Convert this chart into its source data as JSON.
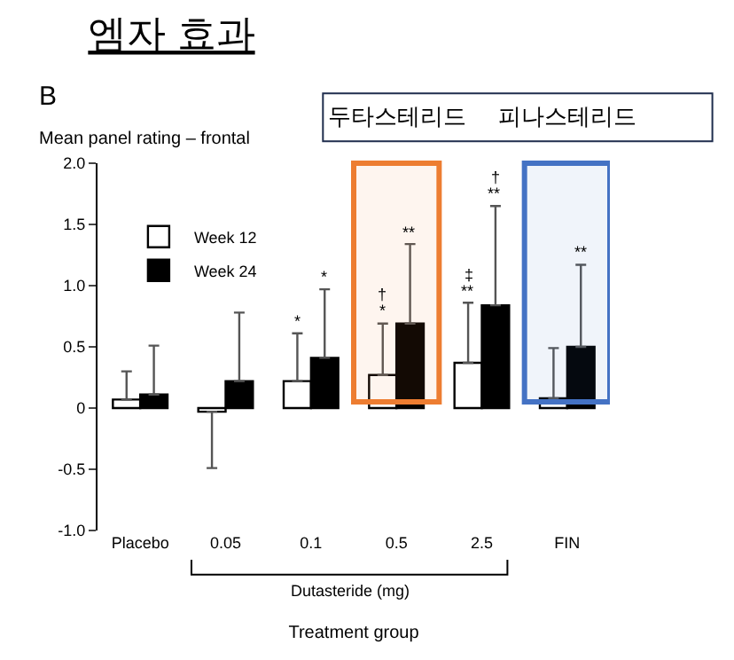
{
  "chart_data": {
    "type": "bar",
    "title": "엠자 효과",
    "ylabel": "Mean panel rating – frontal",
    "xlabel": "Treatment group",
    "categories": [
      "Placebo",
      "0.05",
      "0.1",
      "0.5",
      "2.5",
      "FIN"
    ],
    "series": [
      {
        "name": "Week 12",
        "color": "#ffffff",
        "values": [
          0.07,
          -0.03,
          0.22,
          0.27,
          0.37,
          0.08
        ],
        "errors": [
          [
            0.07,
            0.3
          ],
          [
            -0.49,
            -0.03
          ],
          [
            0.22,
            0.61
          ],
          [
            0.27,
            0.69
          ],
          [
            0.37,
            0.86
          ],
          [
            0.08,
            0.49
          ]
        ]
      },
      {
        "name": "Week 24",
        "color": "#000000",
        "values": [
          0.11,
          0.22,
          0.41,
          0.69,
          0.84,
          0.5
        ],
        "errors": [
          [
            0.11,
            0.51
          ],
          [
            0.22,
            0.78
          ],
          [
            0.41,
            0.97
          ],
          [
            0.69,
            1.34
          ],
          [
            0.84,
            1.65
          ],
          [
            0.5,
            1.17
          ]
        ]
      }
    ],
    "ylim": [
      -1,
      2
    ],
    "yticks": [
      {
        "value": -1,
        "label": "-1.0"
      },
      {
        "value": -0.5,
        "label": "-0.5"
      },
      0,
      0.5,
      {
        "value": 1,
        "label": "1.0"
      },
      1.5,
      {
        "value": 2,
        "label": "2.0"
      }
    ],
    "legend": "top left",
    "bands": [
      {
        "axis": "x",
        "from": "0.5",
        "to": "0.5",
        "label": "두타스테리드",
        "color": "#ed7d31"
      },
      {
        "axis": "x",
        "from": "FIN",
        "to": "FIN",
        "label": "피나스테리드",
        "color": "#4472c4"
      }
    ],
    "annotations": [
      "B",
      "Dutasteride (mg)",
      {
        "text": "*",
        "x": "0.1",
        "y": 0.61
      },
      {
        "text": "*",
        "x": "0.1",
        "y": 0.97
      },
      {
        "text": "*",
        "x": "0.5",
        "y": 0.69
      },
      {
        "text": "†",
        "x": "0.5",
        "y": 0.69
      },
      {
        "text": "**",
        "x": "0.5",
        "y": 1.34
      },
      {
        "text": "**",
        "x": "2.5",
        "y": 0.86
      },
      {
        "text": "‡",
        "x": "2.5",
        "y": 0.86
      },
      {
        "text": "**",
        "x": "2.5",
        "y": 1.65
      },
      {
        "text": "†",
        "x": "2.5",
        "y": 1.65
      },
      {
        "text": "**",
        "x": "FIN",
        "y": 1.17
      }
    ]
  }
}
